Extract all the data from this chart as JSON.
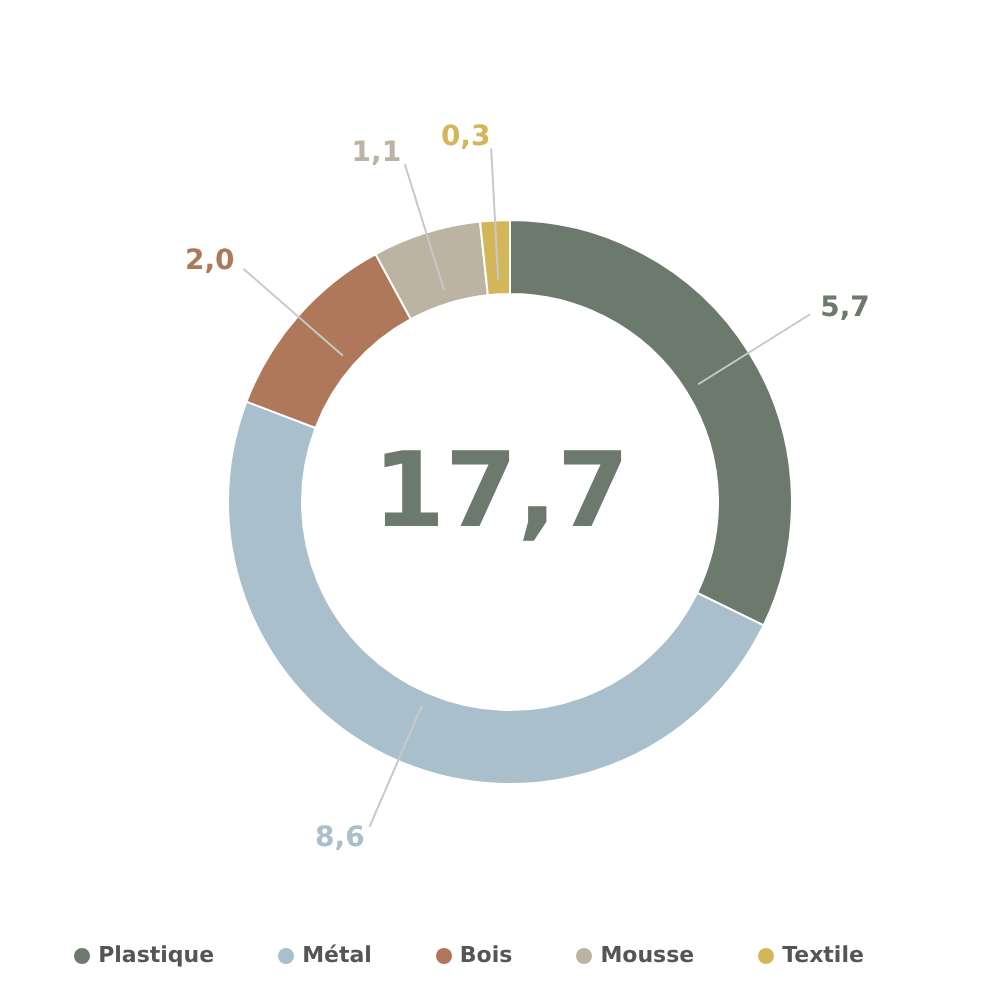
{
  "chart_data": {
    "type": "donut",
    "categories": [
      "Plastique",
      "Métal",
      "Bois",
      "Mousse",
      "Textile"
    ],
    "values": [
      5.7,
      8.6,
      2.0,
      1.1,
      0.3
    ],
    "colors": [
      "#6b7a6d",
      "#a9bfcc",
      "#b0785a",
      "#bcb3a3",
      "#d4b65a"
    ],
    "value_labels": [
      "5,7",
      "8,6",
      "2,0",
      "1,1",
      "0,3"
    ],
    "annotations": [
      "17,7"
    ],
    "legend": "bottom"
  }
}
